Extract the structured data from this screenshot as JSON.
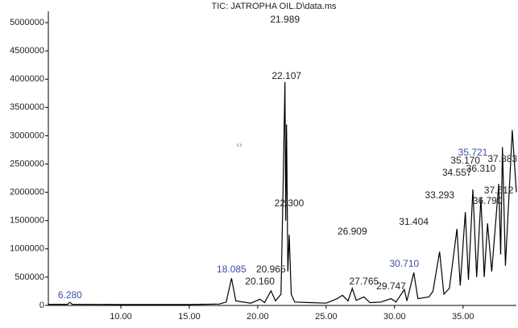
{
  "chart_data": {
    "type": "line",
    "title": "TIC: JATROPHA OIL.D\\data.ms",
    "x": [
      4.7,
      6.1,
      6.28,
      6.45,
      10,
      15,
      17.2,
      17.7,
      18.085,
      18.4,
      19.5,
      20.16,
      20.5,
      20.965,
      21.3,
      21.7,
      21.85,
      21.989,
      22.05,
      22.107,
      22.2,
      22.3,
      22.45,
      22.7,
      25,
      25.8,
      26.2,
      26.6,
      26.909,
      27.2,
      27.765,
      28.2,
      29.0,
      29.747,
      30.1,
      30.71,
      30.9,
      31.404,
      31.7,
      32.5,
      32.8,
      33.293,
      33.6,
      34.0,
      34.557,
      34.8,
      35.17,
      35.4,
      35.721,
      36.0,
      36.31,
      36.55,
      36.79,
      37.1,
      37.612,
      37.75,
      37.883,
      38.1,
      38.6,
      38.9
    ],
    "series": [
      {
        "color": "#000000",
        "values": [
          20000,
          20000,
          55000,
          20000,
          15000,
          15000,
          25000,
          60000,
          480000,
          80000,
          40000,
          110000,
          50000,
          260000,
          80000,
          200000,
          2000000,
          3950000,
          1500000,
          3200000,
          600000,
          1250000,
          200000,
          60000,
          40000,
          120000,
          180000,
          80000,
          300000,
          90000,
          150000,
          50000,
          60000,
          120000,
          60000,
          280000,
          80000,
          580000,
          120000,
          150000,
          250000,
          950000,
          200000,
          300000,
          1350000,
          350000,
          1650000,
          450000,
          2050000,
          500000,
          1900000,
          500000,
          1450000,
          600000,
          2150000,
          900000,
          2800000,
          700000,
          3100000,
          2000000
        ]
      }
    ],
    "xlim": [
      4.7,
      38.9
    ],
    "ylim": [
      0,
      5200000
    ],
    "xticks": [
      {
        "value": 10,
        "label": "10.00"
      },
      {
        "value": 15,
        "label": "15.00"
      },
      {
        "value": 20,
        "label": "20.00"
      },
      {
        "value": 25,
        "label": "25.00"
      },
      {
        "value": 30,
        "label": "30.00"
      },
      {
        "value": 35,
        "label": "35.00"
      }
    ],
    "yticks": [
      0,
      500000,
      1000000,
      1500000,
      2000000,
      2500000,
      3000000,
      3500000,
      4000000,
      4500000,
      5000000
    ],
    "annotations": [
      {
        "label": "6.280",
        "x": 6.28,
        "color": "#3a4fa8"
      },
      {
        "label": "18.085",
        "x": 18.085,
        "color": "#3a4fa8"
      },
      {
        "label": "20.160",
        "x": 20.16,
        "color": "#222222"
      },
      {
        "label": "20.965",
        "x": 20.965,
        "color": "#222222"
      },
      {
        "label": "21.989",
        "x": 21.989,
        "color": "#222222"
      },
      {
        "label": "22.107",
        "x": 22.107,
        "color": "#222222"
      },
      {
        "label": "22.300",
        "x": 22.3,
        "color": "#222222"
      },
      {
        "label": "26.909",
        "x": 26.909,
        "color": "#222222"
      },
      {
        "label": "27.765",
        "x": 27.765,
        "color": "#222222"
      },
      {
        "label": "29.747",
        "x": 29.747,
        "color": "#222222"
      },
      {
        "label": "30.710",
        "x": 30.71,
        "color": "#3a4fa8"
      },
      {
        "label": "31.404",
        "x": 31.404,
        "color": "#222222"
      },
      {
        "label": "33.293",
        "x": 33.293,
        "color": "#222222"
      },
      {
        "label": "34.557",
        "x": 34.557,
        "color": "#222222"
      },
      {
        "label": "35.170",
        "x": 35.17,
        "color": "#222222"
      },
      {
        "label": "35.721",
        "x": 35.721,
        "color": "#3a4fa8"
      },
      {
        "label": "36.310",
        "x": 36.31,
        "color": "#222222"
      },
      {
        "label": "36.790",
        "x": 36.79,
        "color": "#222222"
      },
      {
        "label": "37.612",
        "x": 37.612,
        "color": "#222222"
      },
      {
        "label": "37.883",
        "x": 37.883,
        "color": "#222222"
      }
    ]
  }
}
